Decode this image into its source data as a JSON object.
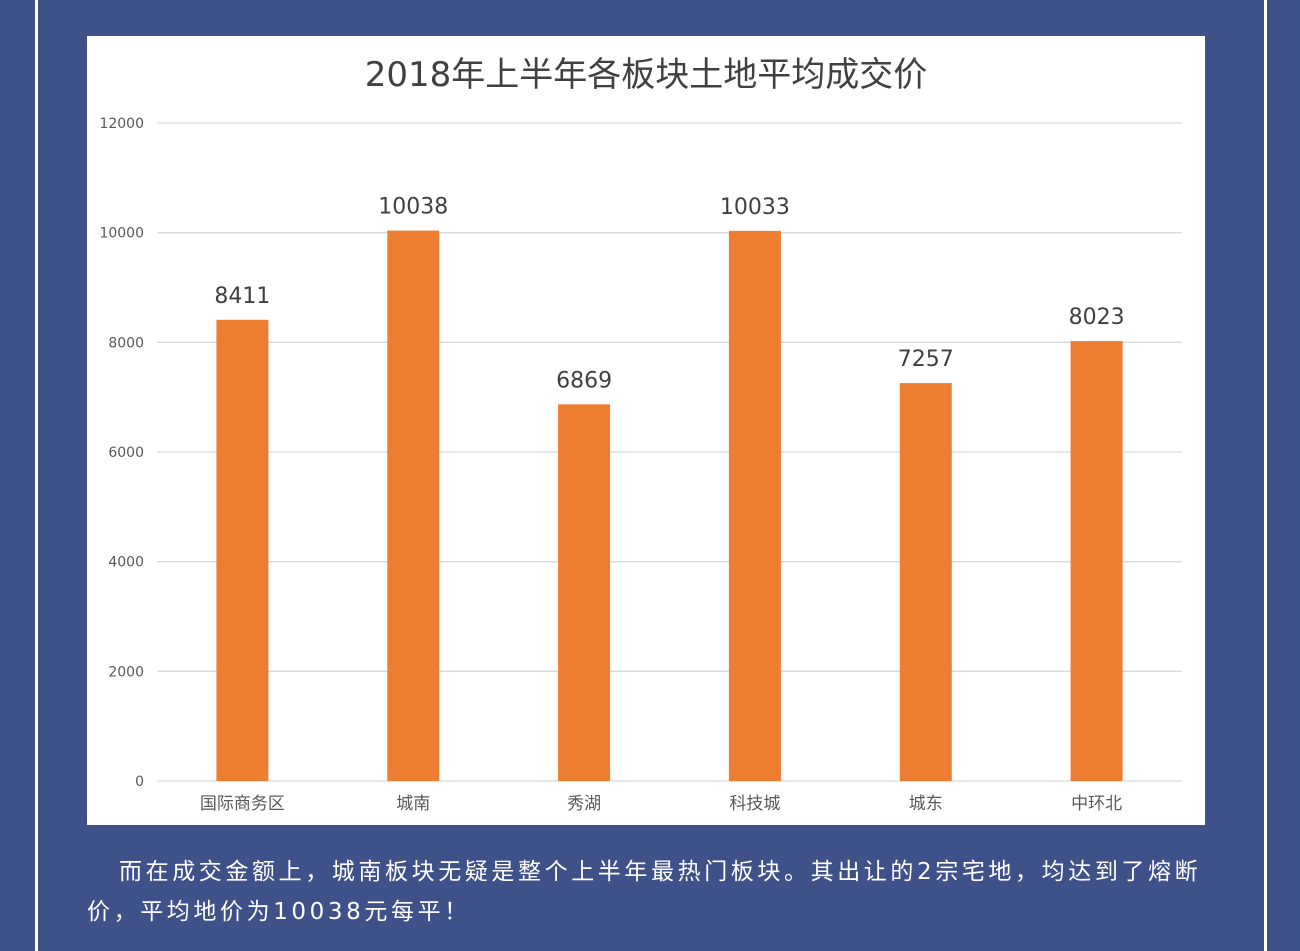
{
  "chart_data": {
    "type": "bar",
    "title": "2018年上半年各板块土地平均成交价",
    "categories": [
      "国际商务区",
      "城南",
      "秀湖",
      "科技城",
      "城东",
      "中环北"
    ],
    "values": [
      8411,
      10038,
      6869,
      10033,
      7257,
      8023
    ],
    "ylim": [
      0,
      12000
    ],
    "yticks": [
      0,
      2000,
      4000,
      6000,
      8000,
      10000,
      12000
    ],
    "grid": true,
    "bar_color": "#ed7d31",
    "xlabel": "",
    "ylabel": ""
  },
  "caption": {
    "text": "而在成交金额上，城南板块无疑是整个上半年最热门板块。其出让的2宗宅地，均达到了熔断价，平均地价为10038元每平！"
  },
  "colors": {
    "background": "#3e5189",
    "panel": "#ffffff",
    "grid": "#d9d9d9",
    "text": "#595959"
  }
}
